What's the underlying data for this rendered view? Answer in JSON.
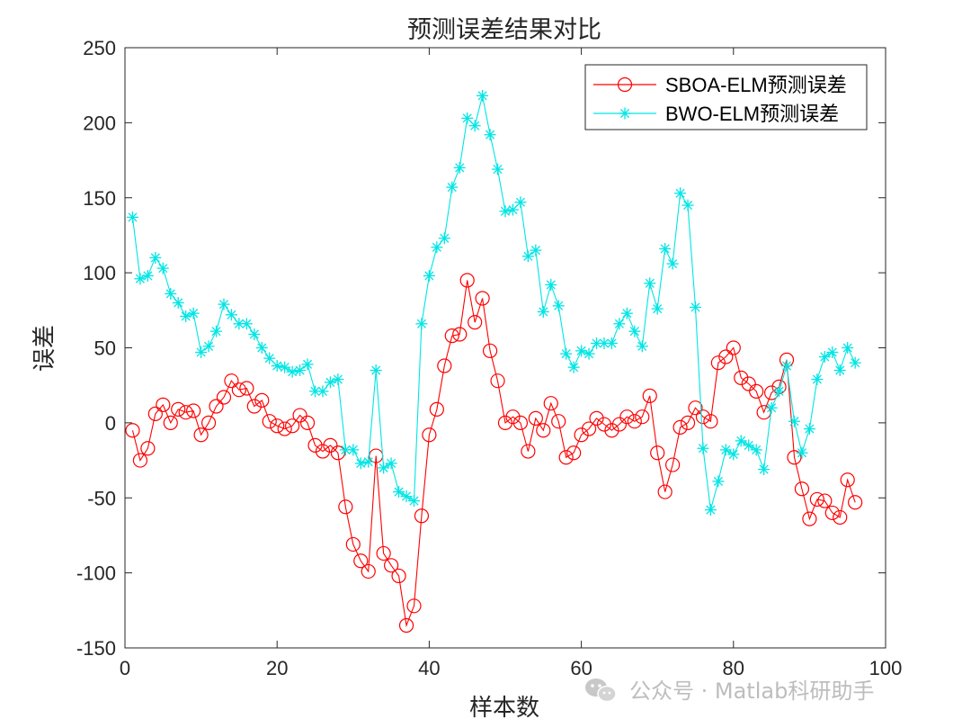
{
  "chart_data": {
    "type": "line",
    "title": "预测误差结果对比",
    "xlabel": "样本数",
    "ylabel": "误差",
    "xlim": [
      0,
      100
    ],
    "ylim": [
      -150,
      250
    ],
    "xticks": [
      0,
      20,
      40,
      60,
      80,
      100
    ],
    "yticks": [
      -150,
      -100,
      -50,
      0,
      50,
      100,
      150,
      200,
      250
    ],
    "grid": false,
    "legend_position": "top-right",
    "series": [
      {
        "name": "SBOA-ELM预测误差",
        "color": "#ff0000",
        "marker": "circle",
        "x": [
          1,
          2,
          3,
          4,
          5,
          6,
          7,
          8,
          9,
          10,
          11,
          12,
          13,
          14,
          15,
          16,
          17,
          18,
          19,
          20,
          21,
          22,
          23,
          24,
          25,
          26,
          27,
          28,
          29,
          30,
          31,
          32,
          33,
          34,
          35,
          36,
          37,
          38,
          39,
          40,
          41,
          42,
          43,
          44,
          45,
          46,
          47,
          48,
          49,
          50,
          51,
          52,
          53,
          54,
          55,
          56,
          57,
          58,
          59,
          60,
          61,
          62,
          63,
          64,
          65,
          66,
          67,
          68,
          69,
          70,
          71,
          72,
          73,
          74,
          75,
          76,
          77,
          78,
          79,
          80,
          81,
          82,
          83,
          84,
          85,
          86,
          87,
          88,
          89,
          90,
          91,
          92,
          93,
          94,
          95,
          96
        ],
        "values": [
          -5,
          -25,
          -17,
          6,
          12,
          0,
          9,
          7,
          8,
          -8,
          0,
          11,
          17,
          28,
          22,
          23,
          11,
          15,
          1,
          -2,
          -4,
          -2,
          5,
          0,
          -15,
          -19,
          -15,
          -20,
          -56,
          -81,
          -92,
          -99,
          -22,
          -87,
          -95,
          -102,
          -135,
          -122,
          -62,
          -8,
          9,
          38,
          58,
          59,
          95,
          67,
          83,
          48,
          28,
          0,
          4,
          0,
          -19,
          3,
          -5,
          13,
          1,
          -23,
          -20,
          -8,
          -4,
          3,
          -1,
          -5,
          -1,
          4,
          1,
          4,
          18,
          -20,
          -46,
          -28,
          -3,
          0,
          10,
          4,
          1,
          40,
          44,
          50,
          30,
          26,
          21,
          7,
          20,
          24,
          42,
          -23,
          -44,
          -64,
          -51,
          -52,
          -60,
          -63,
          -38,
          -53
        ]
      },
      {
        "name": "BWO-ELM预测误差",
        "color": "#00e5e5",
        "marker": "asterisk",
        "x": [
          1,
          2,
          3,
          4,
          5,
          6,
          7,
          8,
          9,
          10,
          11,
          12,
          13,
          14,
          15,
          16,
          17,
          18,
          19,
          20,
          21,
          22,
          23,
          24,
          25,
          26,
          27,
          28,
          29,
          30,
          31,
          32,
          33,
          34,
          35,
          36,
          37,
          38,
          39,
          40,
          41,
          42,
          43,
          44,
          45,
          46,
          47,
          48,
          49,
          50,
          51,
          52,
          53,
          54,
          55,
          56,
          57,
          58,
          59,
          60,
          61,
          62,
          63,
          64,
          65,
          66,
          67,
          68,
          69,
          70,
          71,
          72,
          73,
          74,
          75,
          76,
          77,
          78,
          79,
          80,
          81,
          82,
          83,
          84,
          85,
          86,
          87,
          88,
          89,
          90,
          91,
          92,
          93,
          94,
          95,
          96
        ],
        "values": [
          137,
          96,
          98,
          110,
          103,
          86,
          80,
          71,
          73,
          47,
          51,
          61,
          79,
          72,
          66,
          66,
          59,
          50,
          43,
          38,
          37,
          34,
          35,
          39,
          21,
          21,
          27,
          29,
          -18,
          -18,
          -27,
          -26,
          35,
          -30,
          -27,
          -46,
          -49,
          -52,
          66,
          98,
          117,
          123,
          157,
          170,
          203,
          198,
          218,
          192,
          169,
          141,
          142,
          147,
          111,
          115,
          74,
          92,
          78,
          46,
          37,
          48,
          46,
          53,
          53,
          53,
          66,
          73,
          61,
          51,
          93,
          76,
          116,
          106,
          153,
          145,
          77,
          -17,
          -58,
          -39,
          -18,
          -21,
          -12,
          -15,
          -18,
          -31,
          10,
          21,
          38,
          1,
          -20,
          -4,
          29,
          44,
          47,
          35,
          50,
          40
        ]
      }
    ]
  },
  "watermark": {
    "text": "公众号 · Matlab科研助手",
    "icon": "wechat-icon"
  }
}
